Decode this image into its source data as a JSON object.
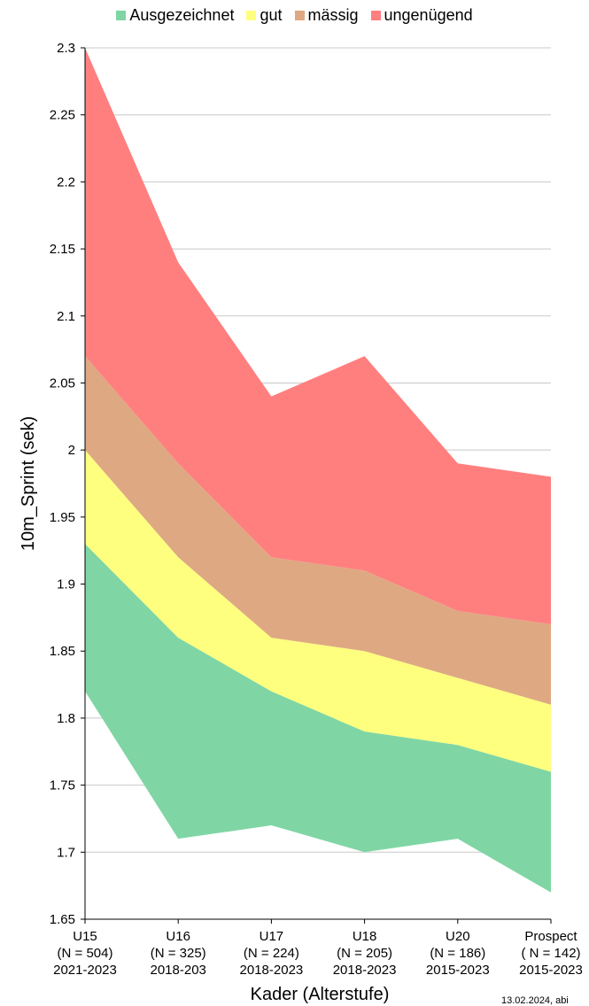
{
  "chart_data": {
    "type": "area",
    "categories": [
      [
        "U15",
        "(N = 504)",
        "2021-2023"
      ],
      [
        "U16",
        "(N = 325)",
        "2018-203"
      ],
      [
        "U17",
        "(N = 224)",
        "2018-2023"
      ],
      [
        "U18",
        "(N = 205)",
        "2018-2023"
      ],
      [
        "U20",
        "(N = 186)",
        "2015-2023"
      ],
      [
        "Prospect",
        "( N = 142)",
        "2015-2023"
      ]
    ],
    "boundaries": {
      "lower": [
        1.82,
        1.71,
        1.72,
        1.7,
        1.71,
        1.67
      ],
      "ausgezeichnet_upper": [
        1.93,
        1.86,
        1.82,
        1.79,
        1.78,
        1.76
      ],
      "gut_upper": [
        2.0,
        1.92,
        1.86,
        1.85,
        1.83,
        1.81
      ],
      "maessig_upper": [
        2.07,
        1.99,
        1.92,
        1.91,
        1.88,
        1.87
      ],
      "ungenuegend_upper": [
        2.3,
        2.14,
        2.04,
        2.07,
        1.99,
        1.98
      ]
    },
    "series": [
      {
        "name": "Ausgezeichnet",
        "color": "#7fd6a4",
        "from": "lower",
        "to": "ausgezeichnet_upper"
      },
      {
        "name": "gut",
        "color": "#ffff7f",
        "from": "ausgezeichnet_upper",
        "to": "gut_upper"
      },
      {
        "name": "mässig",
        "color": "#dea982",
        "from": "gut_upper",
        "to": "maessig_upper"
      },
      {
        "name": "ungenügend",
        "color": "#ff7f7f",
        "from": "maessig_upper",
        "to": "ungenuegend_upper"
      }
    ],
    "ylabel": "10m_Sprint (sek)",
    "xlabel": "Kader (Alterstufe)",
    "ylim": [
      1.65,
      2.3
    ],
    "yticks": [
      "1.65",
      "1.7",
      "1.75",
      "1.8",
      "1.85",
      "1.9",
      "1.95",
      "2",
      "2.05",
      "2.1",
      "2.15",
      "2.2",
      "2.25",
      "2.3"
    ],
    "grid": true,
    "legend_position": "top"
  },
  "footer_stamp": "13.02.2024, abi"
}
